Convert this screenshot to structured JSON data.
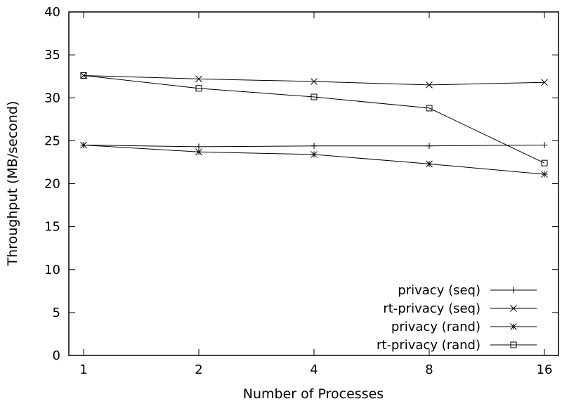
{
  "chart_data": {
    "type": "line",
    "xlabel": "Number of Processes",
    "ylabel": "Throughput (MB/second)",
    "x_categories": [
      "1",
      "2",
      "4",
      "8",
      "16"
    ],
    "ylim": [
      0,
      40
    ],
    "yticks": [
      "0",
      "5",
      "10",
      "15",
      "20",
      "25",
      "30",
      "35",
      "40"
    ],
    "grid": false,
    "legend_position": "bottom-right",
    "series": [
      {
        "name": "privacy (seq)",
        "marker": "plus",
        "values": [
          24.5,
          24.3,
          24.4,
          24.4,
          24.5
        ]
      },
      {
        "name": "rt-privacy (seq)",
        "marker": "cross",
        "values": [
          32.6,
          32.2,
          31.9,
          31.5,
          31.8
        ]
      },
      {
        "name": "privacy (rand)",
        "marker": "star",
        "values": [
          24.5,
          23.7,
          23.4,
          22.3,
          21.1
        ]
      },
      {
        "name": "rt-privacy (rand)",
        "marker": "square",
        "values": [
          32.6,
          31.1,
          30.1,
          28.8,
          22.4
        ]
      }
    ]
  }
}
